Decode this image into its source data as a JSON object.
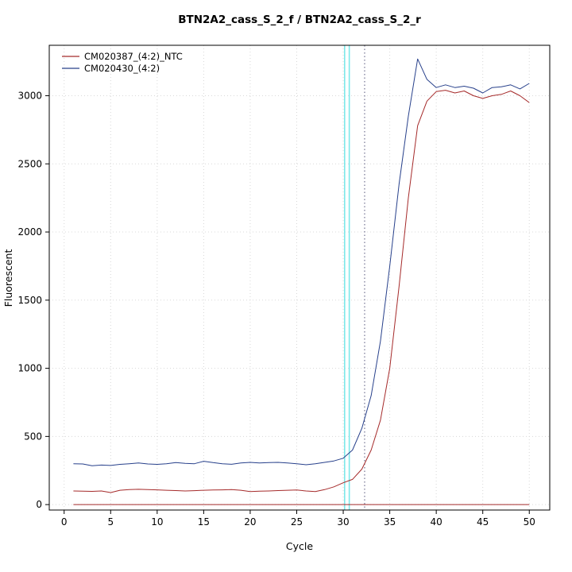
{
  "chart_data": {
    "type": "line",
    "title": "BTN2A2_cass_S_2_f / BTN2A2_cass_S_2_r",
    "xlabel": "Cycle",
    "ylabel": "Fluorescent",
    "xlim": [
      -1.6,
      52.2
    ],
    "ylim": [
      -40,
      3370
    ],
    "xticks": [
      0,
      5,
      10,
      15,
      20,
      25,
      30,
      35,
      40,
      45,
      50
    ],
    "yticks": [
      0,
      500,
      1000,
      1500,
      2000,
      2500,
      3000
    ],
    "grid": true,
    "grid_color": "#d8d8d8",
    "frame_color": "#000000",
    "legend": {
      "position": "top-left",
      "entries": [
        {
          "label": "CM020387_(4:2)_NTC",
          "color": "#a52a2a"
        },
        {
          "label": "CM020430_(4:2)",
          "color": "#27408b"
        }
      ]
    },
    "threshold_lines": {
      "cyan_x": [
        30.15,
        30.65
      ],
      "cyan_color": "#7de8ea",
      "dotted_x": 32.3,
      "dotted_color": "#55557a"
    },
    "x": [
      1,
      2,
      3,
      4,
      5,
      6,
      7,
      8,
      9,
      10,
      11,
      12,
      13,
      14,
      15,
      16,
      17,
      18,
      19,
      20,
      21,
      22,
      23,
      24,
      25,
      26,
      27,
      28,
      29,
      30,
      31,
      32,
      33,
      34,
      35,
      36,
      37,
      38,
      39,
      40,
      41,
      42,
      43,
      44,
      45,
      46,
      47,
      48,
      49,
      50
    ],
    "series": [
      {
        "name": "CM020387_(4:2)_NTC_flat",
        "color": "#a52a2a",
        "values": [
          0,
          0,
          0,
          0,
          0,
          0,
          0,
          0,
          0,
          0,
          0,
          0,
          0,
          0,
          0,
          0,
          0,
          0,
          0,
          0,
          0,
          0,
          0,
          0,
          0,
          0,
          0,
          0,
          0,
          0,
          0,
          0,
          0,
          0,
          0,
          0,
          0,
          0,
          0,
          0,
          0,
          0,
          0,
          0,
          0,
          0,
          0,
          0,
          0,
          0
        ]
      },
      {
        "name": "CM020387_(4:2)_curve",
        "color": "#a52a2a",
        "values": [
          100,
          98,
          97,
          100,
          88,
          105,
          110,
          112,
          110,
          108,
          105,
          103,
          100,
          102,
          105,
          107,
          108,
          110,
          105,
          95,
          98,
          100,
          103,
          105,
          107,
          100,
          95,
          110,
          130,
          160,
          185,
          260,
          400,
          620,
          1000,
          1600,
          2250,
          2780,
          2960,
          3030,
          3040,
          3020,
          3035,
          3000,
          2980,
          3000,
          3010,
          3035,
          3000,
          2950
        ]
      },
      {
        "name": "CM020430_(4:2)_curve",
        "color": "#27408b",
        "values": [
          300,
          298,
          285,
          290,
          287,
          295,
          300,
          305,
          298,
          295,
          300,
          308,
          303,
          300,
          318,
          308,
          300,
          296,
          305,
          310,
          305,
          308,
          310,
          305,
          300,
          292,
          300,
          310,
          320,
          340,
          400,
          560,
          800,
          1200,
          1750,
          2350,
          2850,
          3270,
          3120,
          3060,
          3080,
          3060,
          3070,
          3055,
          3020,
          3060,
          3065,
          3080,
          3050,
          3090
        ]
      }
    ]
  }
}
